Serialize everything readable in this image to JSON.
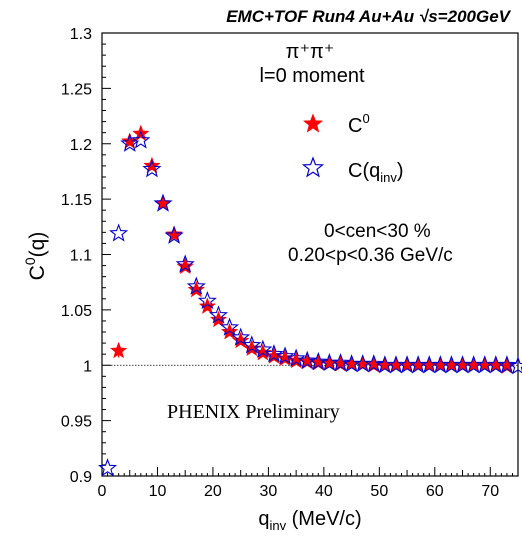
{
  "chart_data": {
    "type": "scatter",
    "title": "EMC+TOF Run4 Au+Au √s=200GeV",
    "xlabel": {
      "main": "q",
      "sub": "inv",
      "unit": " (MeV/c)"
    },
    "ylabel": {
      "main": "C",
      "sup": "0",
      "tail": "(q)"
    },
    "xlim": [
      0,
      75
    ],
    "ylim": [
      0.9,
      1.3
    ],
    "xticks": [
      0,
      10,
      20,
      30,
      40,
      50,
      60,
      70
    ],
    "yticks": [
      0.9,
      0.95,
      1,
      1.05,
      1.1,
      1.15,
      1.2,
      1.25,
      1.3
    ],
    "ytick_labels": [
      "0.9",
      "0.95",
      "1",
      "1.05",
      "1.1",
      "1.15",
      "1.2",
      "1.25",
      "1.3"
    ],
    "reference_line": 1.0,
    "grid": false,
    "legend_position": "top-right",
    "series": [
      {
        "name": "C0",
        "color": "#ff0000",
        "marker": "filled-star",
        "x": [
          3,
          5,
          7,
          9,
          11,
          13,
          15,
          17,
          19,
          21,
          23,
          25,
          27,
          29,
          31,
          33,
          35,
          37,
          39,
          41,
          43,
          45,
          47,
          49,
          51,
          53,
          55,
          57,
          59,
          61,
          63,
          65,
          67,
          69,
          71,
          73
        ],
        "y": [
          1.013,
          1.202,
          1.209,
          1.18,
          1.146,
          1.118,
          1.089,
          1.068,
          1.053,
          1.041,
          1.03,
          1.022,
          1.015,
          1.011,
          1.008,
          1.006,
          1.004,
          1.003,
          1.002,
          1.002,
          1.001,
          1.001,
          1.001,
          1.0,
          1.0,
          1.0,
          1.0,
          1.0,
          1.0,
          1.0,
          1.0,
          1.0,
          1.0,
          1.0,
          1.0,
          0.999
        ]
      },
      {
        "name": "C(qinv)",
        "color": "#0000cc",
        "marker": "open-star",
        "x": [
          1,
          3,
          5,
          7,
          9,
          11,
          13,
          15,
          17,
          19,
          21,
          23,
          25,
          27,
          29,
          31,
          33,
          35,
          37,
          39,
          41,
          43,
          45,
          47,
          49,
          51,
          53,
          55,
          57,
          59,
          61,
          63,
          65,
          67,
          69,
          71,
          73,
          75
        ],
        "y": [
          0.907,
          1.119,
          1.2,
          1.203,
          1.177,
          1.146,
          1.117,
          1.091,
          1.071,
          1.058,
          1.045,
          1.034,
          1.025,
          1.018,
          1.014,
          1.01,
          1.008,
          1.006,
          1.004,
          1.003,
          1.002,
          1.002,
          1.001,
          1.001,
          1.001,
          1.0,
          1.0,
          1.0,
          1.0,
          1.0,
          1.0,
          1.0,
          1.0,
          1.0,
          1.0,
          1.0,
          1.0,
          0.999
        ]
      }
    ],
    "error_bars": [
      {
        "series": "C0",
        "x": 3,
        "err": 0.006
      }
    ],
    "annotations": {
      "pair_label": "π⁺π⁺",
      "moment_label": "l=0 moment",
      "legend_c0": {
        "main": "C",
        "sup": "0"
      },
      "legend_cq": {
        "main": "C(q",
        "sub": "inv",
        "tail": ")"
      },
      "centrality": "0<cen<30 %",
      "momentum": "0.20<p<0.36 GeV/c",
      "preliminary": "PHENIX Preliminary"
    }
  }
}
